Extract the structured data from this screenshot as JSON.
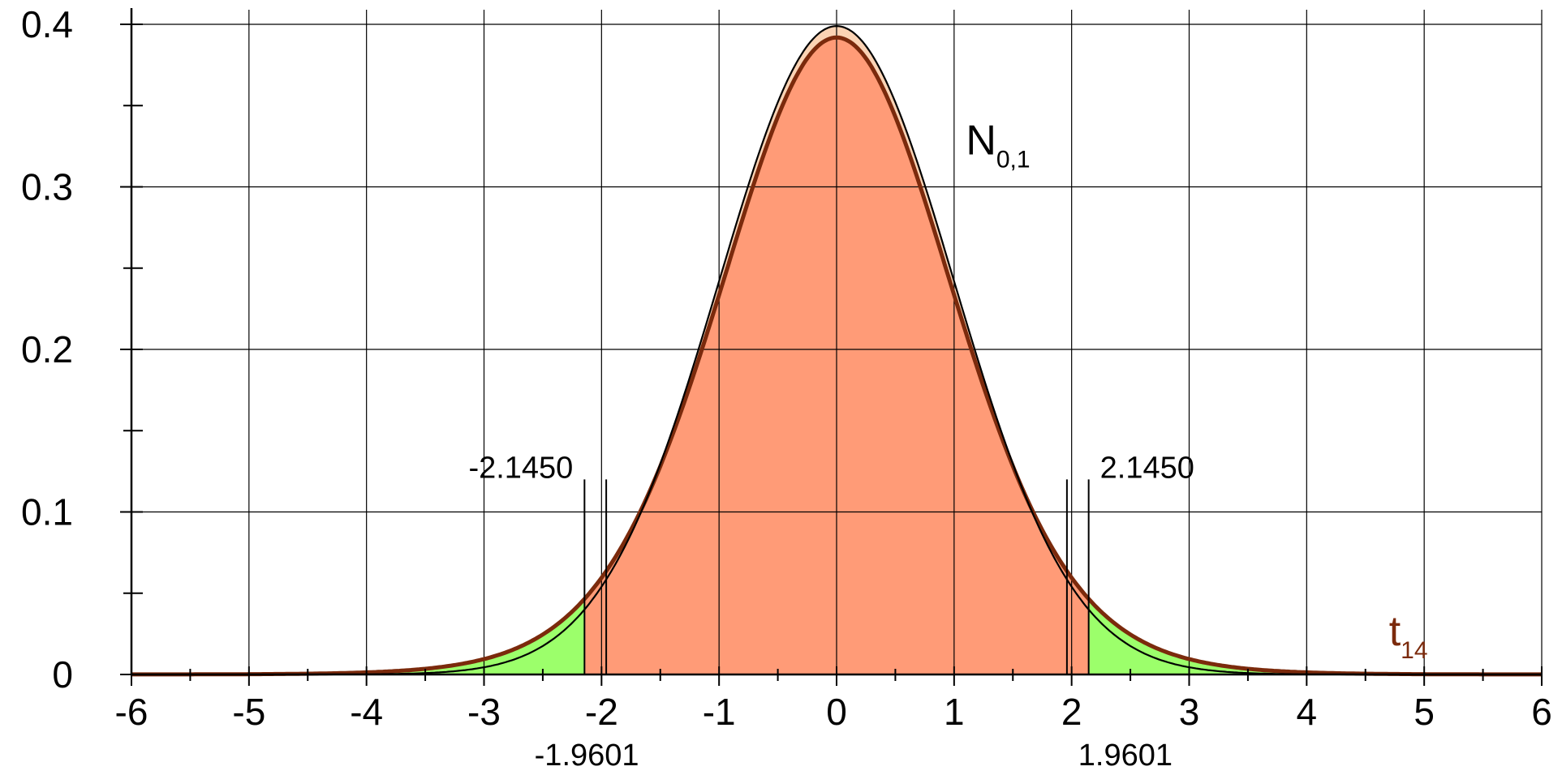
{
  "chart_data": {
    "type": "area",
    "xlim": [
      -6,
      6
    ],
    "ylim": [
      0,
      0.4
    ],
    "grid": true,
    "x_ticks": [
      -6,
      -5,
      -4,
      -3,
      -2,
      -1,
      0,
      1,
      2,
      3,
      4,
      5,
      6
    ],
    "x_tick_labels": [
      "-6",
      "-5",
      "-4",
      "-3",
      "-2",
      "-1",
      "0",
      "1",
      "2",
      "3",
      "4",
      "5",
      "6"
    ],
    "y_ticks": [
      0,
      0.1,
      0.2,
      0.3,
      0.4
    ],
    "y_tick_labels": [
      "0",
      "0.1",
      "0.2",
      "0.3",
      "0.4"
    ],
    "series": [
      {
        "name": "N0,1",
        "name_main": "N",
        "name_sub": "0,1",
        "distribution": "normal",
        "mean": 0,
        "sd": 1,
        "color": "#000000",
        "fill": "#fbd3b4"
      },
      {
        "name": "t14",
        "name_main": "t",
        "name_sub": "14",
        "distribution": "student-t",
        "df": 14,
        "color": "#7b2a0c",
        "fill": "#ff9b77"
      }
    ],
    "critical_values": {
      "t14": [
        -2.145,
        2.145
      ],
      "t14_labels": [
        "-2.1450",
        "2.1450"
      ],
      "normal": [
        -1.9601,
        1.9601
      ],
      "normal_labels": [
        "-1.9601",
        "1.9601"
      ]
    },
    "tail_fill_color": "#9cff6b",
    "center_fill_color": "#ff9b77"
  }
}
